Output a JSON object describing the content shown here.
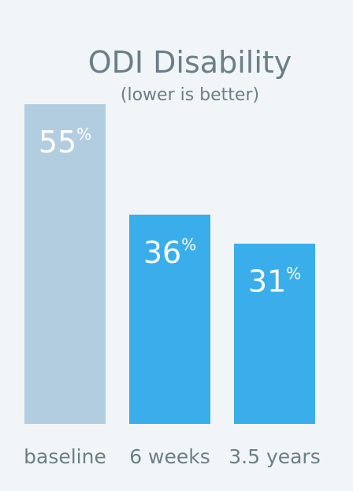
{
  "chart_data": {
    "type": "bar",
    "title": "ODI Disability",
    "subtitle": "(lower is better)",
    "categories": [
      "baseline",
      "6 weeks",
      "3.5 years"
    ],
    "values": [
      55,
      36,
      31
    ],
    "value_suffix": "%",
    "ylim": [
      0,
      55
    ],
    "grid": false,
    "colors": [
      "#b3cde0",
      "#3aaeea",
      "#3aaeea"
    ]
  }
}
